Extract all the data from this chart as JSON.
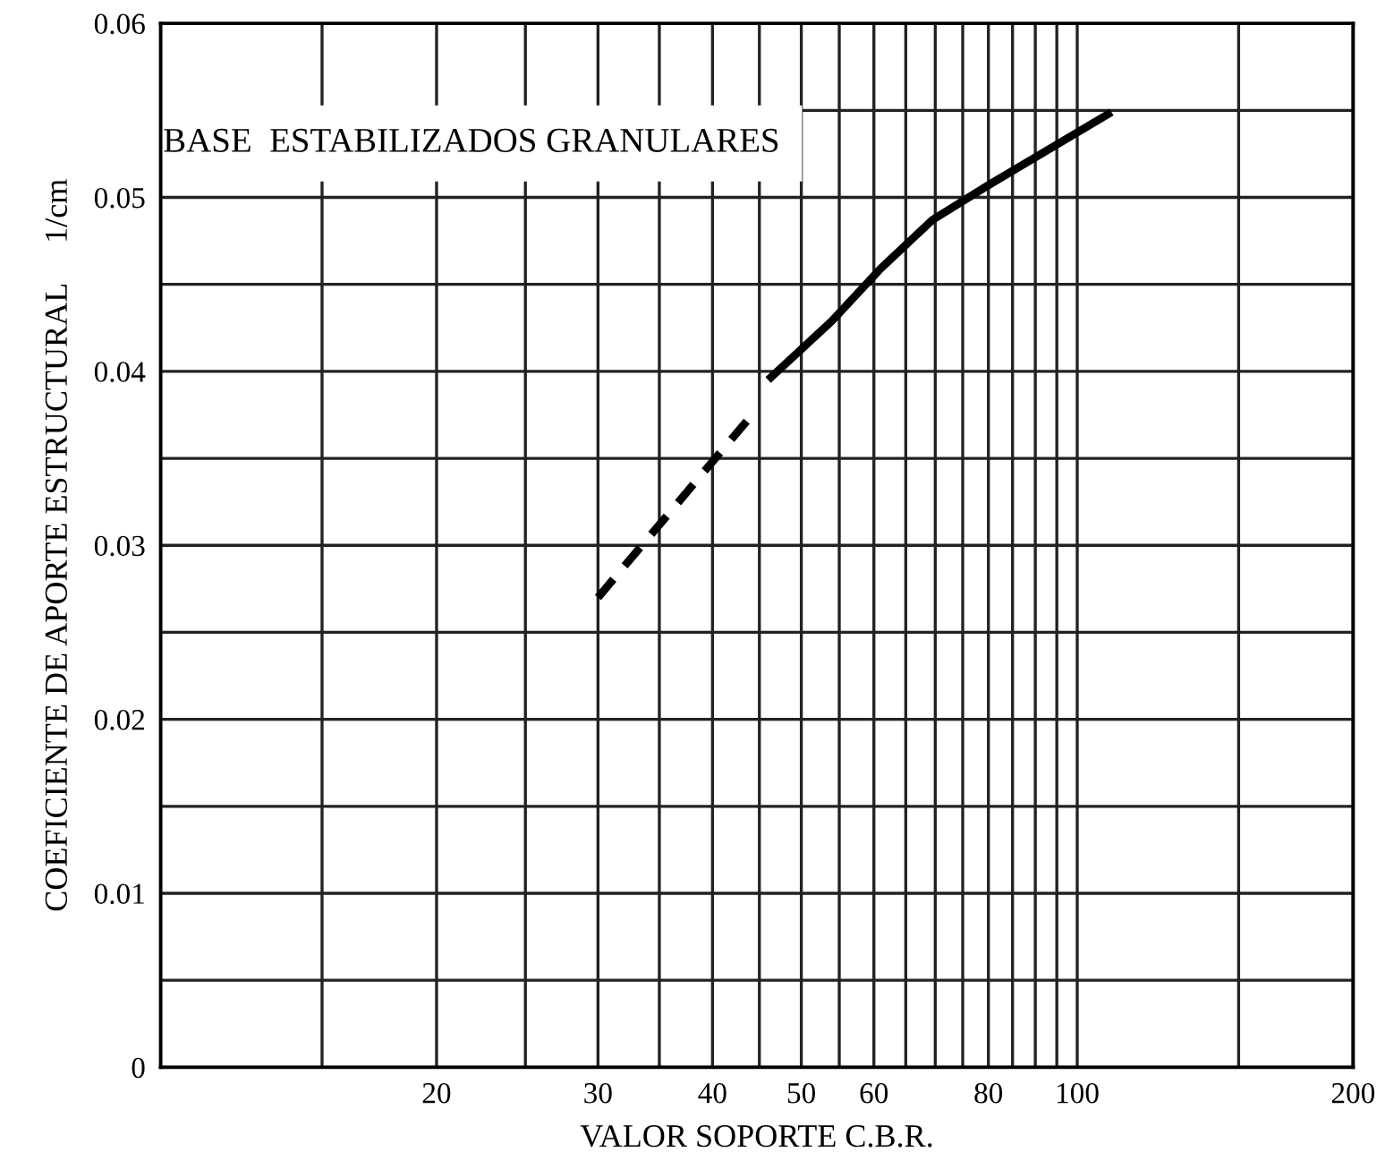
{
  "chart_data": {
    "type": "line",
    "xlabel": "VALOR SOPORTE C.B.R.",
    "ylabel": "COEFICIENTE DE APORTE ESTRUCTURAL     1/cm",
    "annotations": [
      "BASE  ESTABILIZADOS GRANULARES"
    ],
    "log": "x",
    "xlim": [
      10,
      200
    ],
    "ylim": [
      0,
      0.06
    ],
    "xticks": [
      {
        "value": 15,
        "label": null
      },
      20,
      {
        "value": 25,
        "label": null
      },
      30,
      {
        "value": 35,
        "label": null
      },
      40,
      {
        "value": 45,
        "label": null
      },
      50,
      {
        "value": 55,
        "label": null
      },
      60,
      {
        "value": 65,
        "label": null
      },
      {
        "value": 70,
        "label": null
      },
      {
        "value": 75,
        "label": null
      },
      80,
      {
        "value": 85,
        "label": null
      },
      {
        "value": 90,
        "label": null
      },
      {
        "value": 95,
        "label": null
      },
      100,
      {
        "value": 150,
        "label": null
      },
      200
    ],
    "yticks": [
      0,
      {
        "value": 0.005,
        "label": null
      },
      0.01,
      {
        "value": 0.015,
        "label": null
      },
      0.02,
      {
        "value": 0.025,
        "label": null
      },
      0.03,
      {
        "value": 0.035,
        "label": null
      },
      0.04,
      {
        "value": 0.045,
        "label": null
      },
      0.05,
      {
        "value": 0.055,
        "label": null
      },
      0.06
    ],
    "grid": true,
    "legend": false,
    "series": [
      {
        "color": "#000000",
        "line_style": "dashed",
        "x": [
          30,
          44.5
        ],
        "values": [
          0.027,
          0.0377
        ]
      },
      {
        "color": "#000000",
        "line_style": "solid",
        "x": [
          46,
          54,
          61,
          69.5,
          80,
          109
        ],
        "values": [
          0.0395,
          0.0429,
          0.0459,
          0.0487,
          0.0507,
          0.0549
        ]
      }
    ]
  }
}
